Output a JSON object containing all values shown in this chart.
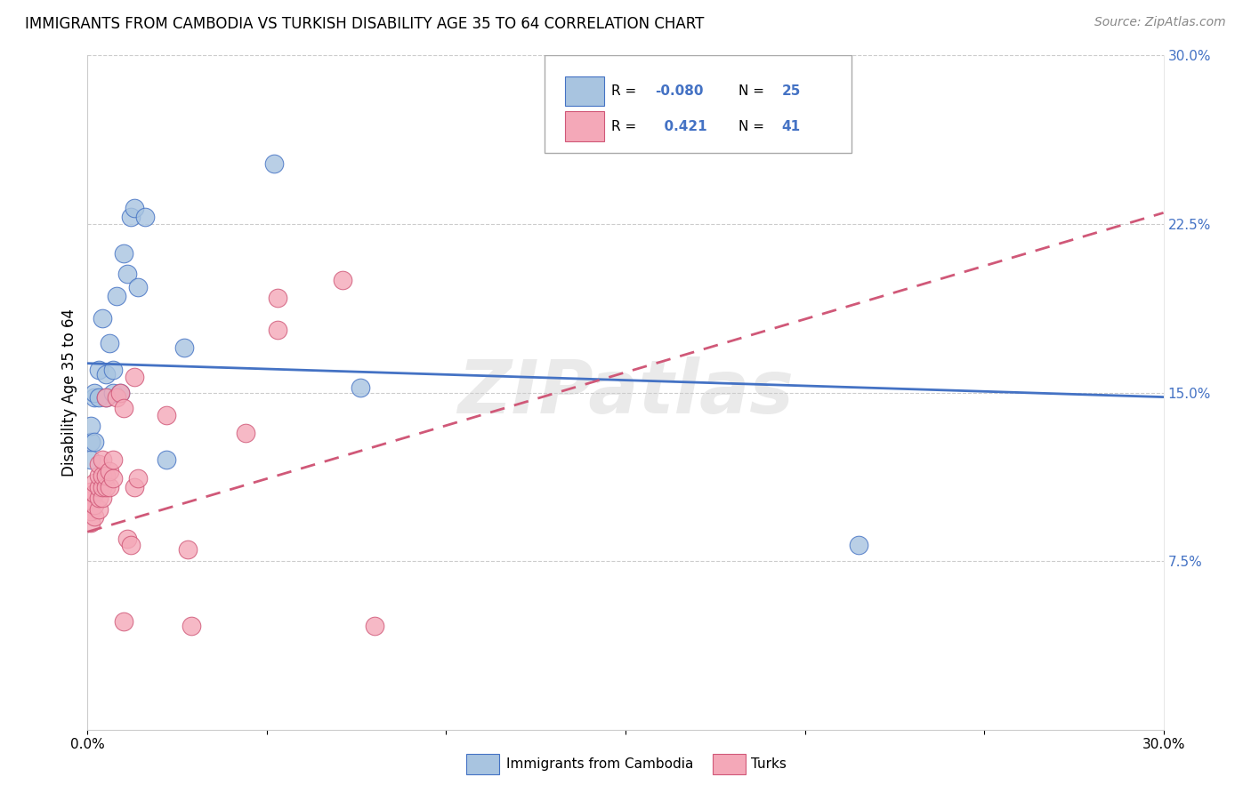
{
  "title": "IMMIGRANTS FROM CAMBODIA VS TURKISH DISABILITY AGE 35 TO 64 CORRELATION CHART",
  "source": "Source: ZipAtlas.com",
  "ylabel": "Disability Age 35 to 64",
  "xlim": [
    0.0,
    0.3
  ],
  "ylim": [
    0.0,
    0.3
  ],
  "yticks_right": [
    0.075,
    0.15,
    0.225,
    0.3
  ],
  "ytick_labels_right": [
    "7.5%",
    "15.0%",
    "22.5%",
    "30.0%"
  ],
  "grid_color": "#cccccc",
  "background_color": "#ffffff",
  "cambodia_color": "#a8c4e0",
  "turks_color": "#f4a8b8",
  "trendline_cambodia_color": "#4472c4",
  "trendline_turks_color": "#d05878",
  "watermark": "ZIPatlas",
  "legend_label1": "Immigrants from Cambodia",
  "legend_label2": "Turks",
  "cambodia_points": [
    [
      0.001,
      0.12
    ],
    [
      0.001,
      0.128
    ],
    [
      0.001,
      0.135
    ],
    [
      0.002,
      0.128
    ],
    [
      0.002,
      0.148
    ],
    [
      0.002,
      0.15
    ],
    [
      0.003,
      0.148
    ],
    [
      0.003,
      0.16
    ],
    [
      0.004,
      0.183
    ],
    [
      0.005,
      0.148
    ],
    [
      0.005,
      0.158
    ],
    [
      0.006,
      0.172
    ],
    [
      0.007,
      0.15
    ],
    [
      0.007,
      0.16
    ],
    [
      0.008,
      0.193
    ],
    [
      0.009,
      0.15
    ],
    [
      0.01,
      0.212
    ],
    [
      0.011,
      0.203
    ],
    [
      0.012,
      0.228
    ],
    [
      0.013,
      0.232
    ],
    [
      0.014,
      0.197
    ],
    [
      0.016,
      0.228
    ],
    [
      0.022,
      0.12
    ],
    [
      0.027,
      0.17
    ],
    [
      0.052,
      0.252
    ],
    [
      0.076,
      0.152
    ],
    [
      0.215,
      0.082
    ]
  ],
  "turks_points": [
    [
      0.001,
      0.092
    ],
    [
      0.001,
      0.097
    ],
    [
      0.001,
      0.102
    ],
    [
      0.001,
      0.106
    ],
    [
      0.002,
      0.095
    ],
    [
      0.002,
      0.1
    ],
    [
      0.002,
      0.105
    ],
    [
      0.002,
      0.11
    ],
    [
      0.003,
      0.098
    ],
    [
      0.003,
      0.103
    ],
    [
      0.003,
      0.108
    ],
    [
      0.003,
      0.113
    ],
    [
      0.003,
      0.118
    ],
    [
      0.004,
      0.103
    ],
    [
      0.004,
      0.108
    ],
    [
      0.004,
      0.113
    ],
    [
      0.004,
      0.12
    ],
    [
      0.005,
      0.108
    ],
    [
      0.005,
      0.113
    ],
    [
      0.005,
      0.148
    ],
    [
      0.006,
      0.108
    ],
    [
      0.006,
      0.115
    ],
    [
      0.007,
      0.112
    ],
    [
      0.007,
      0.12
    ],
    [
      0.008,
      0.148
    ],
    [
      0.009,
      0.15
    ],
    [
      0.01,
      0.143
    ],
    [
      0.011,
      0.085
    ],
    [
      0.012,
      0.082
    ],
    [
      0.013,
      0.108
    ],
    [
      0.013,
      0.157
    ],
    [
      0.014,
      0.112
    ],
    [
      0.022,
      0.14
    ],
    [
      0.028,
      0.08
    ],
    [
      0.029,
      0.046
    ],
    [
      0.044,
      0.132
    ],
    [
      0.053,
      0.178
    ],
    [
      0.053,
      0.192
    ],
    [
      0.071,
      0.2
    ],
    [
      0.08,
      0.046
    ],
    [
      0.01,
      0.048
    ]
  ]
}
